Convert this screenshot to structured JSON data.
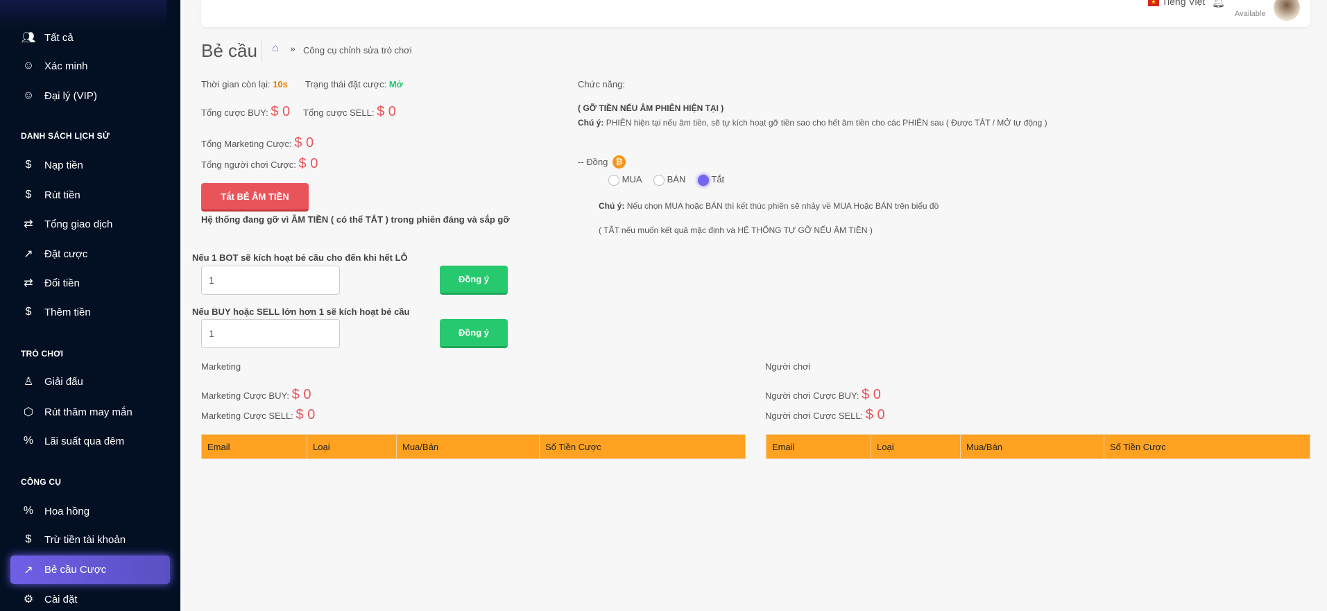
{
  "sidebar": {
    "items_top": [
      {
        "label": "Tất cả",
        "icon": "users-icon"
      },
      {
        "label": "Xác minh",
        "icon": "user-check-icon"
      },
      {
        "label": "Đại lý (VIP)",
        "icon": "user-x-icon"
      }
    ],
    "history_header": "DANH SÁCH LỊCH SỬ",
    "history_items": [
      {
        "label": "Nạp tiền",
        "icon": "dollar-icon"
      },
      {
        "label": "Rút tiền",
        "icon": "dollar-icon"
      },
      {
        "label": "Tổng giao dịch",
        "icon": "repeat-icon"
      },
      {
        "label": "Đặt cược",
        "icon": "trending-up-icon"
      },
      {
        "label": "Đổi tiền",
        "icon": "repeat-icon"
      },
      {
        "label": "Thêm tiền",
        "icon": "dollar-icon"
      }
    ],
    "games_header": "TRÒ CHƠI",
    "games_items": [
      {
        "label": "Giải đấu",
        "icon": "award-icon"
      },
      {
        "label": "Rút thăm may mắn",
        "icon": "box-icon"
      },
      {
        "label": "Lãi suất qua đêm",
        "icon": "percent-icon"
      }
    ],
    "tools_header": "CÔNG CỤ",
    "tools_items": [
      {
        "label": "Hoa hồng",
        "icon": "percent-icon"
      },
      {
        "label": "Trừ tiền tài khoản",
        "icon": "dollar-icon"
      },
      {
        "label": "Bẻ cầu Cược",
        "icon": "trending-up-icon",
        "active": true
      },
      {
        "label": "Cài đặt",
        "icon": "settings-icon"
      }
    ]
  },
  "header": {
    "language": "Tiếng Việt",
    "status": "Available"
  },
  "page": {
    "title": "Bẻ cầu",
    "breadcrumb": "Công cụ chỉnh sửa trò chơi"
  },
  "stats": {
    "time_left_label": "Thời gian còn lại:",
    "time_left": "10s",
    "bet_status_label": "Trạng thái đặt cược:",
    "bet_status": "Mở",
    "total_buy_label": "Tổng cược BUY:",
    "total_buy": "$ 0",
    "total_sell_label": "Tổng cược SELL:",
    "total_sell": "$ 0",
    "total_marketing_label": "Tổng Marketing Cược:",
    "total_marketing": "$ 0",
    "total_players_label": "Tổng người chơi Cược:",
    "total_players": "$ 0"
  },
  "toggle_button": "Tắt BẺ ÂM TIỀN",
  "system_note": "Hệ thống đang gỡ vì ÂM TIỀN ( có thể TẮT ) trong phiên đáng và sắp gỡ",
  "form1": {
    "label": "Nếu 1 BOT sẽ kích hoạt bẻ cầu cho đến khi hết LỖ",
    "value": "1",
    "button": "Đồng ý"
  },
  "form2": {
    "label": "Nếu BUY hoặc SELL lớn hơn 1 sẽ kích hoạt bẻ cầu",
    "value": "1",
    "button": "Đồng ý"
  },
  "function": {
    "label": "Chức năng:",
    "heading": "( GỠ TIỀN NẾU ÂM PHIÊN HIỆN TẠI )",
    "note_label": "Chú ý:",
    "note": "PHIÊN hiện tại nếu âm tiền, sẽ tự kích hoạt gỡ tiền sao cho hết âm tiền cho các PHIÊN sau ( Được TẮT / MỞ tự động )",
    "coin_label": "-- Đồng",
    "options": [
      "MUA",
      "BÁN",
      "Tắt"
    ],
    "selected": "Tắt",
    "note2_label": "Chú ý:",
    "note2": "Nếu chọn MUA hoặc BÁN thì kết thúc phiên sẽ nhảy về MUA Hoặc BÁN trên biểu đồ",
    "note3": "( TẮT nếu muốn kết quả mặc định và HỆ THỐNG TỰ GỠ NẾU ÂM TIỀN )"
  },
  "marketing": {
    "title": "Marketing",
    "buy_label": "Marketing Cược BUY:",
    "buy": "$ 0",
    "sell_label": "Marketing Cược SELL:",
    "sell": "$ 0",
    "columns": [
      "Email",
      "Loại",
      "Mua/Bán",
      "Số Tiền Cược"
    ]
  },
  "players": {
    "title": "Người chơi",
    "buy_label": "Người chơi Cược BUY:",
    "buy": "$ 0",
    "sell_label": "Người chơi Cược SELL:",
    "sell": "$ 0",
    "columns": [
      "Email",
      "Loại",
      "Mua/Bán",
      "Số Tiền Cược"
    ]
  },
  "colors": {
    "accent": "#7366f0",
    "danger": "#e9545b",
    "success": "#27c96f",
    "table_header": "#ffa221",
    "sidebar": "#031024"
  }
}
